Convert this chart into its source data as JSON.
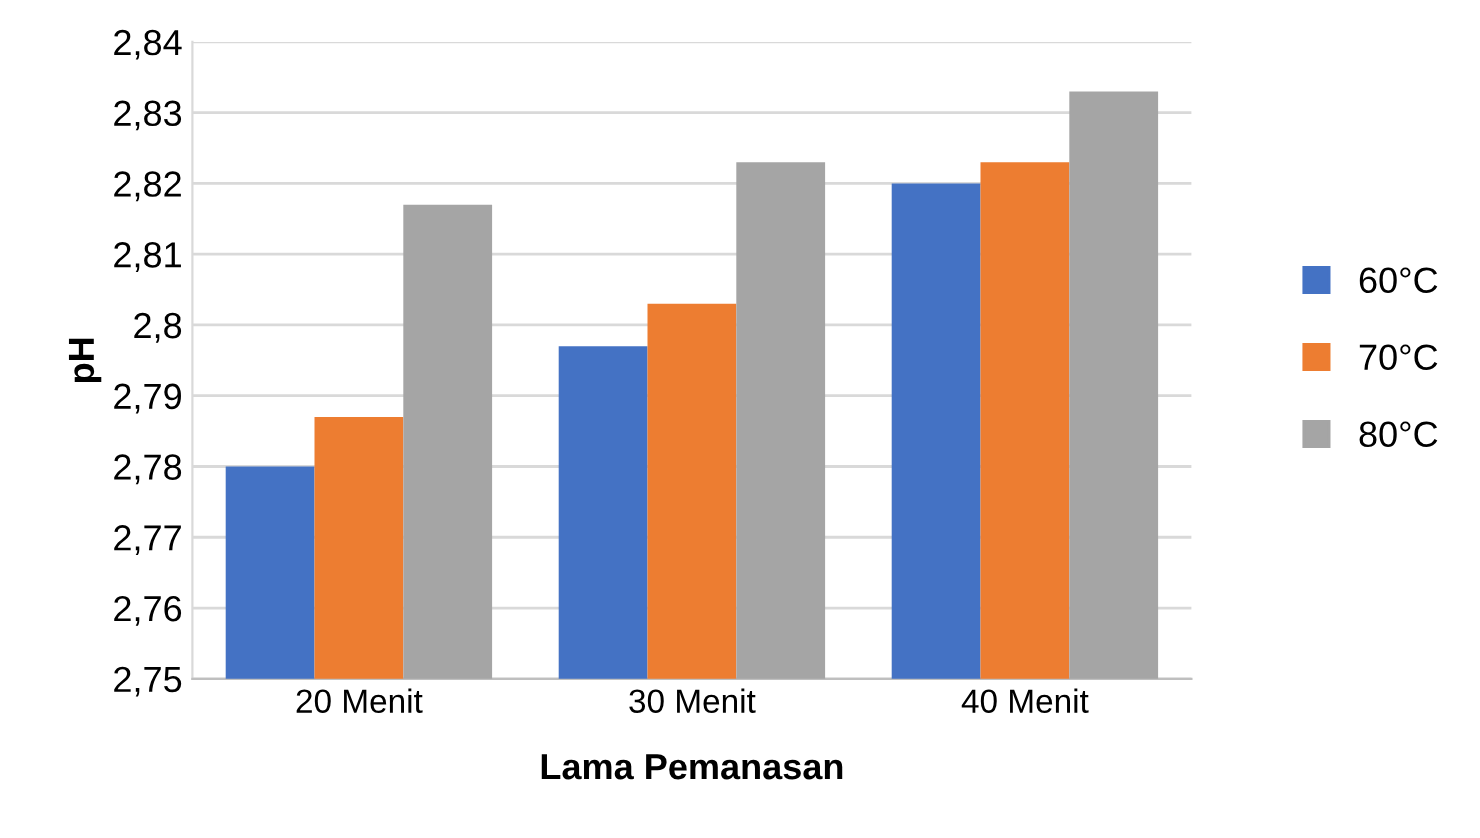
{
  "chart_data": {
    "type": "bar",
    "xlabel": "Lama Pemanasan",
    "ylabel": "pH",
    "categories": [
      "20 Menit",
      "30 Menit",
      "40 Menit"
    ],
    "series": [
      {
        "name": "60°C",
        "color": "#4472c4",
        "values": [
          2.78,
          2.797,
          2.82
        ]
      },
      {
        "name": "70°C",
        "color": "#ed7d31",
        "values": [
          2.787,
          2.803,
          2.823
        ]
      },
      {
        "name": "80°C",
        "color": "#a5a5a5",
        "values": [
          2.817,
          2.823,
          2.833
        ]
      }
    ],
    "ylim": [
      2.75,
      2.84
    ],
    "yticks": [
      {
        "value": 2.75,
        "label": "2,75"
      },
      {
        "value": 2.76,
        "label": "2,76"
      },
      {
        "value": 2.77,
        "label": "2,77"
      },
      {
        "value": 2.78,
        "label": "2,78"
      },
      {
        "value": 2.79,
        "label": "2,79"
      },
      {
        "value": 2.8,
        "label": "2,8"
      },
      {
        "value": 2.81,
        "label": "2,81"
      },
      {
        "value": 2.82,
        "label": "2,82"
      },
      {
        "value": 2.83,
        "label": "2,83"
      },
      {
        "value": 2.84,
        "label": "2,84"
      }
    ],
    "grid": "y",
    "legend": "right"
  }
}
